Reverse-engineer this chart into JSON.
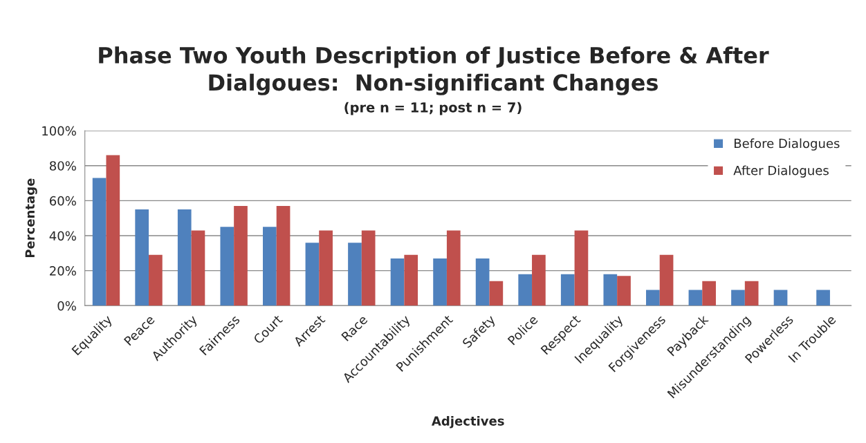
{
  "chart_data": {
    "type": "bar",
    "title": "Phase Two Youth Description of Justice Before & After\nDialgoues:  Non-significant Changes",
    "subtitle": "(pre n = 11; post n = 7)",
    "xlabel": "Adjectives",
    "ylabel": "Percentage",
    "categories": [
      "Equality",
      "Peace",
      "Authority",
      "Fairness",
      "Court",
      "Arrest",
      "Race",
      "Accountability",
      "Punishment",
      "Safety",
      "Police",
      "Respect",
      "Inequality",
      "Forgiveness",
      "Payback",
      "Misunderstanding",
      "Powerless",
      "In Trouble"
    ],
    "series": [
      {
        "name": "Before Dialogues",
        "color": "#4f81bd",
        "values": [
          73,
          55,
          55,
          45,
          45,
          36,
          36,
          27,
          27,
          27,
          18,
          18,
          18,
          9,
          9,
          9,
          9,
          9
        ]
      },
      {
        "name": "After Dialogues",
        "color": "#c0504d",
        "values": [
          86,
          29,
          43,
          57,
          57,
          43,
          43,
          29,
          43,
          14,
          29,
          43,
          17,
          29,
          14,
          14,
          null,
          null
        ]
      }
    ],
    "ylim": [
      0,
      100
    ],
    "yticks": [
      {
        "value": 0,
        "label": "0%"
      },
      {
        "value": 20,
        "label": "20%"
      },
      {
        "value": 40,
        "label": "40%"
      },
      {
        "value": 60,
        "label": "60%"
      },
      {
        "value": 80,
        "label": "80%"
      },
      {
        "value": 100,
        "label": "100%"
      }
    ],
    "grid": "y",
    "legend": "top right"
  }
}
